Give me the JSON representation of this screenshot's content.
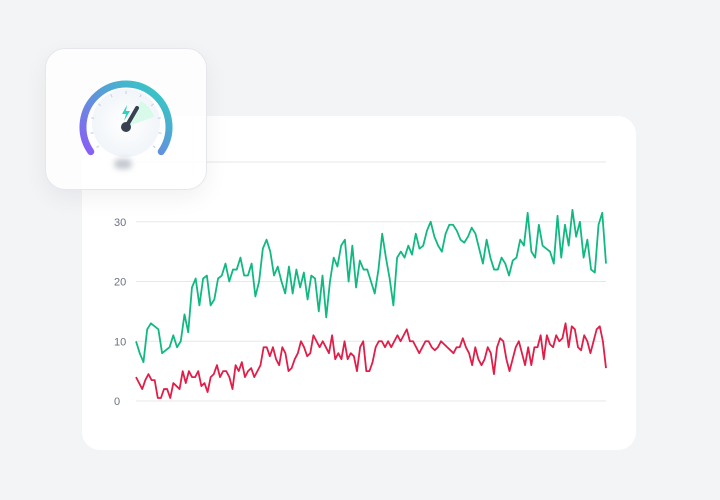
{
  "chart_data": {
    "type": "line",
    "xlabel": "",
    "ylabel": "",
    "ylim": [
      0,
      40
    ],
    "yticks": [
      0,
      10,
      20,
      30
    ],
    "grid": true,
    "legend": "none",
    "series": [
      {
        "color": "#10b981",
        "values": [
          10,
          8,
          6.5,
          12,
          13,
          12.5,
          12,
          8,
          8.5,
          9,
          11,
          9,
          10,
          14.5,
          11.5,
          19,
          20.5,
          16,
          20.5,
          21,
          16,
          17,
          20.5,
          21,
          23,
          20,
          22,
          22,
          24,
          21,
          21,
          23,
          17.5,
          20,
          25.5,
          27,
          25,
          21,
          22.5,
          20,
          18,
          22.5,
          18,
          22,
          19,
          21.5,
          17,
          21,
          20.5,
          15,
          21,
          14,
          20,
          24,
          22.5,
          26,
          27,
          20,
          26,
          19,
          23.5,
          22,
          22,
          20,
          18,
          22,
          28,
          24,
          20.5,
          16,
          24,
          25,
          24,
          26,
          24.5,
          28,
          25.5,
          26,
          28.5,
          30,
          27.5,
          26,
          25,
          28,
          29.5,
          29.5,
          28.5,
          27,
          26.5,
          27.5,
          29,
          28,
          25.5,
          23,
          27,
          24,
          22,
          22,
          24,
          23,
          21,
          23.5,
          24,
          27,
          26,
          31.5,
          25,
          24,
          29.5,
          26,
          25.5,
          25,
          23,
          31,
          24,
          29.5,
          26,
          32,
          27.5,
          30,
          24,
          27,
          22,
          21.5,
          29.5,
          31.5,
          23
        ]
      },
      {
        "color": "#e11d48",
        "values": [
          4,
          3,
          2,
          3.5,
          4.5,
          3.5,
          3.5,
          0.5,
          0.5,
          2,
          2,
          0.5,
          3,
          2.5,
          2,
          5,
          3,
          5,
          4,
          4,
          5,
          2.5,
          3,
          1.5,
          4,
          4.5,
          6,
          4,
          5,
          5,
          4,
          2,
          6,
          5,
          6.5,
          4,
          5,
          5.5,
          4,
          5,
          6,
          9,
          9,
          7.5,
          9,
          7,
          6,
          9,
          8,
          5,
          5.5,
          7,
          8,
          10,
          9,
          7.5,
          8,
          11,
          10,
          9,
          10,
          9,
          8,
          11,
          7,
          8,
          7,
          10,
          7,
          8,
          7.5,
          5,
          9,
          10,
          5,
          5,
          6.5,
          9,
          10,
          10,
          9,
          10,
          9,
          10,
          11,
          10,
          11,
          12,
          10,
          10,
          9,
          8,
          9,
          10,
          10,
          9,
          8.5,
          9,
          10,
          9.5,
          9,
          8.5,
          8,
          9,
          9,
          10.5,
          9,
          8,
          6,
          9,
          7,
          6,
          7,
          9,
          8,
          4.5,
          9,
          10.5,
          10,
          7,
          5,
          7,
          9,
          10,
          8,
          6,
          9,
          6,
          9,
          9,
          11,
          7,
          11,
          9.5,
          9,
          11,
          10,
          10.5,
          13,
          9,
          12.5,
          12,
          9,
          8.5,
          11,
          10,
          8,
          10,
          12,
          12.5,
          10,
          5.5
        ]
      }
    ]
  },
  "gauge": {
    "arc_color_start": "#8b5cf6",
    "arc_color_end": "#2dd4bf",
    "needle_value": 0.62,
    "icon": "lightning-bolt-icon"
  }
}
